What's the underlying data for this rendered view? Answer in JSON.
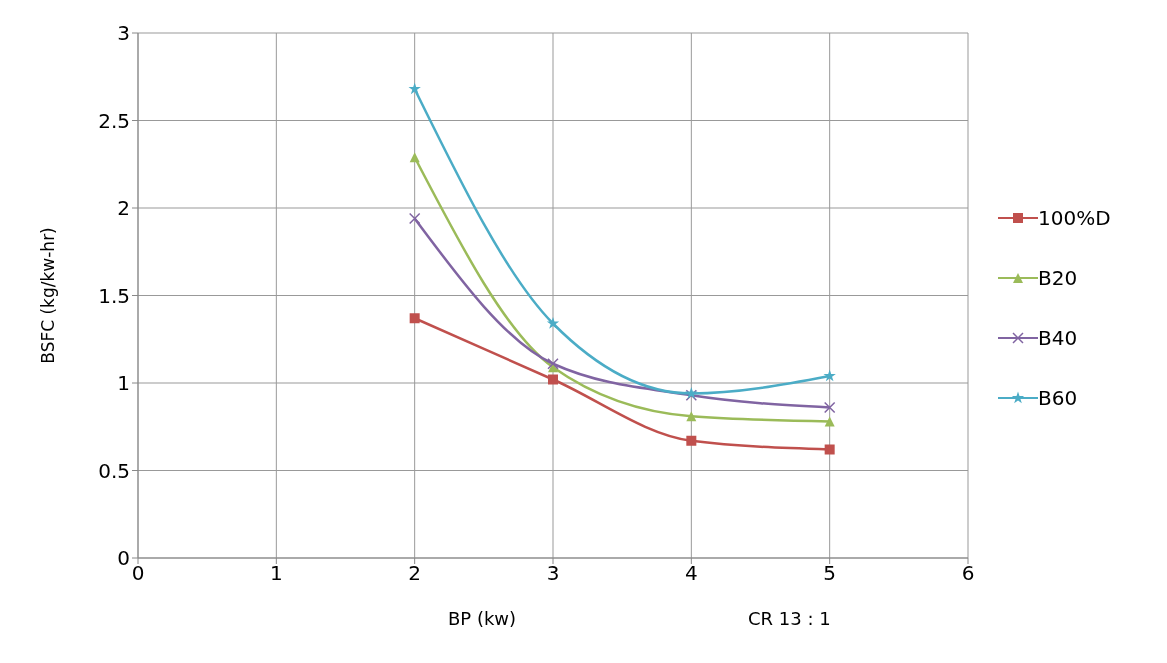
{
  "chart_data": {
    "type": "line",
    "xlabel": "BP  (kw)",
    "ylabel": "BSFC (kg/kw-hr)",
    "annotations": [
      "CR 13 : 1"
    ],
    "x": [
      2,
      3,
      4,
      5
    ],
    "xlim": [
      0,
      6
    ],
    "xticks": [
      0,
      1,
      2,
      3,
      4,
      5,
      6
    ],
    "ylim": [
      0,
      3
    ],
    "yticks": [
      0,
      0.5,
      1,
      1.5,
      2,
      2.5,
      3
    ],
    "grid": true,
    "legend": "right",
    "series": [
      {
        "name": "100%D",
        "color": "#c0504d",
        "marker": "square",
        "values": [
          1.37,
          1.02,
          0.67,
          0.62
        ]
      },
      {
        "name": "B20",
        "color": "#9bbb59",
        "marker": "triangle",
        "values": [
          2.29,
          1.09,
          0.81,
          0.78
        ]
      },
      {
        "name": "B40",
        "color": "#8064a2",
        "marker": "cross",
        "values": [
          1.94,
          1.11,
          0.93,
          0.86
        ]
      },
      {
        "name": "B60",
        "color": "#4bacc6",
        "marker": "star",
        "values": [
          2.68,
          1.34,
          0.94,
          1.04
        ]
      }
    ]
  }
}
